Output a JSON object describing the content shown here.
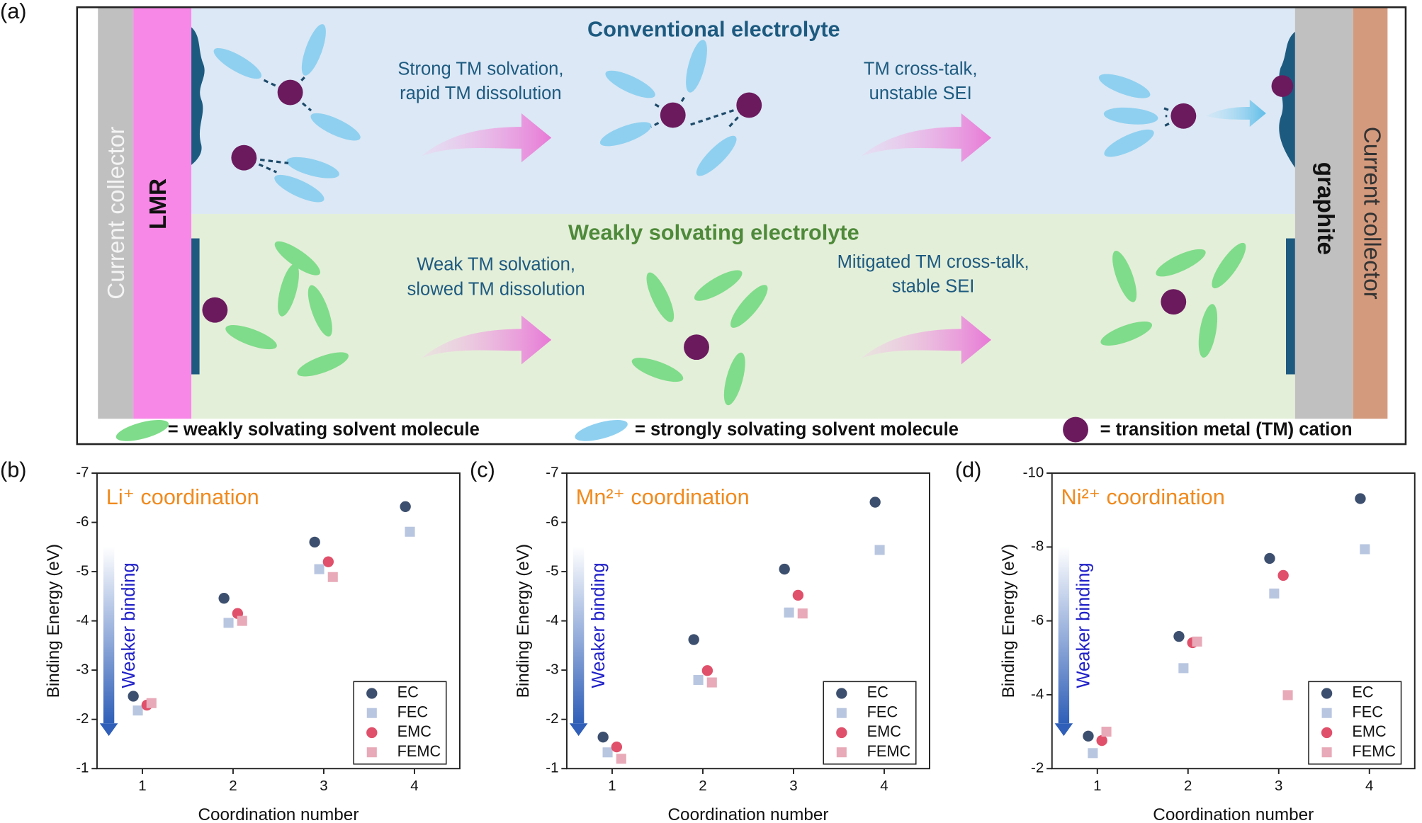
{
  "diagram": {
    "panel": "(a)",
    "collector_left": "Current collector",
    "cathode": "LMR",
    "anode": "graphite",
    "collector_right": "Current collector",
    "conventional": {
      "title": "Conventional electrolyte",
      "step1": [
        "Strong TM solvation,",
        "rapid TM dissolution"
      ],
      "step2": [
        "TM cross-talk,",
        "unstable SEI"
      ]
    },
    "weak": {
      "title": "Weakly solvating electrolyte",
      "step1": [
        "Weak TM solvation,",
        "slowed TM dissolution"
      ],
      "step2": [
        "Mitigated TM cross-talk,",
        "stable SEI"
      ]
    },
    "legend": [
      "= weakly solvating solvent molecule",
      "= strongly solvating solvent molecule",
      "= transition metal (TM) cation"
    ]
  },
  "chart_data": [
    {
      "type": "scatter",
      "panel": "(b)",
      "title": "Li⁺ coordination",
      "xlabel": "Coordination number",
      "ylabel": "Binding Energy (eV)",
      "annotation": "Weaker binding",
      "xlim": [
        0.5,
        4.5
      ],
      "xticks": [
        1,
        2,
        3,
        4
      ],
      "ylim": [
        -1,
        -7
      ],
      "yticks": [
        -7,
        -6,
        -5,
        -4,
        -3,
        -2,
        -1
      ],
      "legend": "lower right",
      "series": [
        {
          "name": "EC",
          "color": "#3d4f6e",
          "marker": "circle",
          "x": [
            0.9,
            1.9,
            2.9,
            3.9
          ],
          "values": [
            -2.47,
            -4.46,
            -5.6,
            -6.32
          ]
        },
        {
          "name": "FEC",
          "color": "#b9c6e0",
          "marker": "square",
          "x": [
            0.95,
            1.95,
            2.95,
            3.95
          ],
          "values": [
            -2.18,
            -3.96,
            -5.05,
            -5.81
          ]
        },
        {
          "name": "EMC",
          "color": "#e0506a",
          "marker": "circle",
          "x": [
            1.05,
            2.05,
            3.05,
            4.05
          ],
          "values": [
            -2.29,
            -4.15,
            -5.2,
            null
          ]
        },
        {
          "name": "FEMC",
          "color": "#e8aab8",
          "marker": "square",
          "x": [
            1.1,
            2.1,
            3.1,
            4.1
          ],
          "values": [
            -2.33,
            -4.0,
            -4.89,
            null
          ]
        }
      ]
    },
    {
      "type": "scatter",
      "panel": "(c)",
      "title": "Mn²⁺ coordination",
      "xlabel": "Coordination number",
      "ylabel": "Binding Energy (eV)",
      "annotation": "Weaker binding",
      "xlim": [
        0.5,
        4.5
      ],
      "xticks": [
        1,
        2,
        3,
        4
      ],
      "ylim": [
        -1,
        -7
      ],
      "yticks": [
        -7,
        -6,
        -5,
        -4,
        -3,
        -2,
        -1
      ],
      "legend": "lower right",
      "series": [
        {
          "name": "EC",
          "color": "#3d4f6e",
          "marker": "circle",
          "x": [
            0.9,
            1.9,
            2.9,
            3.9
          ],
          "values": [
            -1.64,
            -3.62,
            -5.05,
            -6.41
          ]
        },
        {
          "name": "FEC",
          "color": "#b9c6e0",
          "marker": "square",
          "x": [
            0.95,
            1.95,
            2.95,
            3.95
          ],
          "values": [
            -1.33,
            -2.8,
            -4.17,
            -5.44
          ]
        },
        {
          "name": "EMC",
          "color": "#e0506a",
          "marker": "circle",
          "x": [
            1.05,
            2.05,
            3.05,
            4.05
          ],
          "values": [
            -1.44,
            -2.99,
            -4.52,
            null
          ]
        },
        {
          "name": "FEMC",
          "color": "#e8aab8",
          "marker": "square",
          "x": [
            1.1,
            2.1,
            3.1,
            4.1
          ],
          "values": [
            -1.2,
            -2.75,
            -4.15,
            null
          ]
        }
      ]
    },
    {
      "type": "scatter",
      "panel": "(d)",
      "title": "Ni²⁺ coordination",
      "xlabel": "Coordination number",
      "ylabel": "Binding Energy (eV)",
      "annotation": "Weaker binding",
      "xlim": [
        0.5,
        4.5
      ],
      "xticks": [
        1,
        2,
        3,
        4
      ],
      "ylim": [
        -2,
        -10
      ],
      "yticks": [
        -10,
        -8,
        -6,
        -4,
        -2
      ],
      "legend": "lower right",
      "series": [
        {
          "name": "EC",
          "color": "#3d4f6e",
          "marker": "circle",
          "x": [
            0.9,
            1.9,
            2.9,
            3.9
          ],
          "values": [
            -2.88,
            -5.58,
            -7.69,
            -9.31
          ]
        },
        {
          "name": "FEC",
          "color": "#b9c6e0",
          "marker": "square",
          "x": [
            0.95,
            1.95,
            2.95,
            3.95
          ],
          "values": [
            -2.42,
            -4.72,
            -6.74,
            -7.94
          ]
        },
        {
          "name": "EMC",
          "color": "#e0506a",
          "marker": "circle",
          "x": [
            1.05,
            2.05,
            3.05,
            4.05
          ],
          "values": [
            -2.76,
            -5.41,
            -7.23,
            null
          ]
        },
        {
          "name": "FEMC",
          "color": "#e8aab8",
          "marker": "square",
          "x": [
            1.1,
            2.1,
            3.1,
            4.1
          ],
          "values": [
            -3.0,
            -5.44,
            -3.99,
            null
          ]
        }
      ]
    }
  ]
}
